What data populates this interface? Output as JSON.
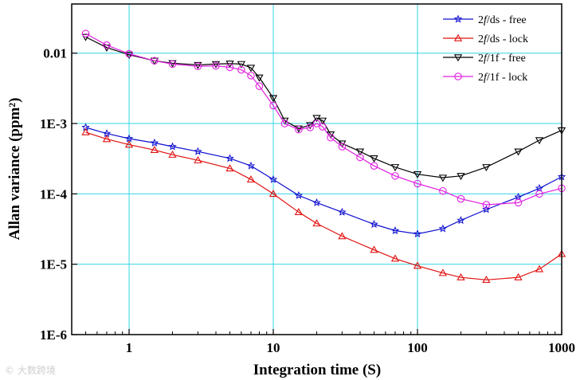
{
  "chart_data": {
    "type": "scatter",
    "title": "",
    "xlabel": "Integration time (S)",
    "ylabel": "Allan variance (ppm²)",
    "xscale": "log",
    "yscale": "log",
    "xlim": [
      0.4,
      1000
    ],
    "ylim": [
      1e-06,
      0.05
    ],
    "xticks": [
      {
        "value": 1,
        "label": "1"
      },
      {
        "value": 10,
        "label": "10"
      },
      {
        "value": 100,
        "label": "100"
      },
      {
        "value": 1000,
        "label": "1000"
      }
    ],
    "yticks": [
      {
        "value": 1e-06,
        "label": "1E-6"
      },
      {
        "value": 1e-05,
        "label": "1E-5"
      },
      {
        "value": 0.0001,
        "label": "1E-4"
      },
      {
        "value": 0.001,
        "label": "1E-3"
      },
      {
        "value": 0.01,
        "label": "0.01"
      }
    ],
    "grid": true,
    "legend_position": "top-right",
    "series": [
      {
        "name": "2f/ds - free",
        "legend_prefix": "2",
        "legend_italic": "f",
        "legend_suffix": "/ds - free",
        "color": "#1010d0",
        "marker": "star",
        "x": [
          0.5,
          0.7,
          1,
          1.5,
          2,
          3,
          5,
          7,
          10,
          15,
          20,
          30,
          50,
          70,
          100,
          150,
          200,
          300,
          500,
          700,
          1000
        ],
        "y": [
          0.00088,
          0.00072,
          0.00061,
          0.00053,
          0.00047,
          0.0004,
          0.00032,
          0.00025,
          0.00016,
          9.5e-05,
          7.5e-05,
          5.5e-05,
          3.7e-05,
          3e-05,
          2.7e-05,
          3.2e-05,
          4.2e-05,
          6e-05,
          9e-05,
          0.00012,
          0.000175
        ]
      },
      {
        "name": "2f/ds - lock",
        "legend_prefix": "2",
        "legend_italic": "f",
        "legend_suffix": "/ds - lock",
        "color": "#e01010",
        "marker": "triangle-up",
        "x": [
          0.5,
          0.7,
          1,
          1.5,
          2,
          3,
          5,
          7,
          10,
          15,
          20,
          30,
          50,
          70,
          100,
          150,
          200,
          300,
          500,
          700,
          1000
        ],
        "y": [
          0.00075,
          0.0006,
          0.0005,
          0.00042,
          0.00036,
          0.0003,
          0.00023,
          0.00016,
          0.0001,
          5.5e-05,
          3.8e-05,
          2.5e-05,
          1.6e-05,
          1.2e-05,
          9.5e-06,
          7.5e-06,
          6.5e-06,
          6e-06,
          6.5e-06,
          8.5e-06,
          1.4e-05
        ]
      },
      {
        "name": "2f/1f - free",
        "legend_prefix": "2",
        "legend_italic": "f",
        "legend_suffix": "/1f - free",
        "color": "#000000",
        "marker": "triangle-down",
        "x": [
          0.5,
          0.7,
          1,
          1.5,
          2,
          3,
          4,
          5,
          6,
          7,
          8,
          10,
          12,
          15,
          18,
          20,
          22,
          25,
          30,
          40,
          50,
          70,
          100,
          150,
          200,
          300,
          500,
          700,
          1000
        ],
        "y": [
          0.017,
          0.012,
          0.0095,
          0.0078,
          0.0072,
          0.0068,
          0.007,
          0.0071,
          0.007,
          0.0062,
          0.0045,
          0.0023,
          0.0011,
          0.00085,
          0.00095,
          0.0012,
          0.0011,
          0.0007,
          0.00052,
          0.0004,
          0.00032,
          0.00024,
          0.00019,
          0.00017,
          0.00018,
          0.00024,
          0.0004,
          0.00058,
          0.0008
        ]
      },
      {
        "name": "2f/1f - lock",
        "legend_prefix": "2",
        "legend_italic": "f",
        "legend_suffix": "/1f - lock",
        "color": "#e020e0",
        "marker": "circle",
        "x": [
          0.5,
          0.7,
          1,
          1.5,
          2,
          3,
          4,
          5,
          6,
          7,
          8,
          10,
          12,
          15,
          18,
          20,
          22,
          25,
          30,
          40,
          50,
          70,
          100,
          150,
          200,
          300,
          500,
          700,
          1000
        ],
        "y": [
          0.019,
          0.013,
          0.0098,
          0.0078,
          0.007,
          0.0065,
          0.0066,
          0.0063,
          0.0058,
          0.0048,
          0.0034,
          0.0018,
          0.001,
          0.00082,
          0.00088,
          0.001,
          0.0009,
          0.00063,
          0.00047,
          0.00033,
          0.00025,
          0.00018,
          0.00014,
          0.00011,
          8.5e-05,
          7e-05,
          7.5e-05,
          0.0001,
          0.00012
        ]
      }
    ]
  },
  "watermark": "© 大数跨境"
}
